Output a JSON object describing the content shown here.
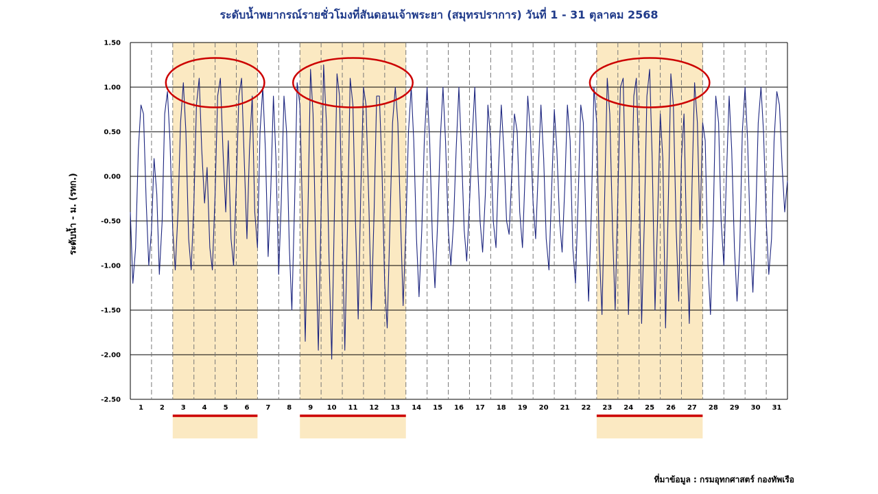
{
  "chart_data": {
    "type": "line",
    "title": "ระดับน้ำพยากรณ์รายชั่วโมงที่สันดอนเจ้าพระยา (สมุทรปราการ) วันที่ 1 - 31 ตุลาคม 2568",
    "ylabel": "ระดับน้ำ - ม. (รทก.)",
    "xlabel": "",
    "ylim": [
      -2.5,
      1.5
    ],
    "xlim": [
      0.5,
      31.5
    ],
    "yticks": [
      "1.50",
      "1.00",
      "0.50",
      "0.00",
      "-0.50",
      "-1.00",
      "-1.50",
      "-2.00",
      "-2.50"
    ],
    "categories": [
      "1",
      "2",
      "3",
      "4",
      "5",
      "6",
      "7",
      "8",
      "9",
      "10",
      "11",
      "12",
      "13",
      "14",
      "15",
      "16",
      "17",
      "18",
      "19",
      "20",
      "21",
      "22",
      "23",
      "24",
      "25",
      "26",
      "27",
      "28",
      "29",
      "30",
      "31"
    ],
    "grid": true,
    "colors": {
      "line": "#1a237e",
      "highlight": "#fbe9c2",
      "circle": "#cc0000",
      "underline": "#cc0000",
      "grid": "#000000"
    },
    "highlight_ranges": [
      [
        2.5,
        6.5
      ],
      [
        8.5,
        13.5
      ],
      [
        22.5,
        27.5
      ]
    ],
    "series": [
      {
        "points": [
          [
            0.5,
            -0.4
          ],
          [
            0.62,
            -1.2
          ],
          [
            0.75,
            -0.8
          ],
          [
            0.88,
            0.3
          ],
          [
            1.0,
            0.8
          ],
          [
            1.12,
            0.7
          ],
          [
            1.25,
            -0.3
          ],
          [
            1.37,
            -1.0
          ],
          [
            1.5,
            -0.6
          ],
          [
            1.62,
            0.2
          ],
          [
            1.75,
            -0.2
          ],
          [
            1.87,
            -1.1
          ],
          [
            2.0,
            -0.5
          ],
          [
            2.12,
            0.7
          ],
          [
            2.25,
            0.95
          ],
          [
            2.37,
            0.4
          ],
          [
            2.5,
            -0.6
          ],
          [
            2.62,
            -1.05
          ],
          [
            2.75,
            -0.4
          ],
          [
            2.87,
            0.6
          ],
          [
            3.0,
            1.05
          ],
          [
            3.12,
            0.5
          ],
          [
            3.25,
            -0.7
          ],
          [
            3.37,
            -1.05
          ],
          [
            3.5,
            -0.3
          ],
          [
            3.62,
            0.8
          ],
          [
            3.75,
            1.1
          ],
          [
            3.87,
            0.3
          ],
          [
            4.0,
            -0.3
          ],
          [
            4.12,
            0.1
          ],
          [
            4.25,
            -0.8
          ],
          [
            4.37,
            -1.05
          ],
          [
            4.5,
            -0.2
          ],
          [
            4.62,
            0.9
          ],
          [
            4.75,
            1.1
          ],
          [
            4.87,
            0.3
          ],
          [
            5.0,
            -0.4
          ],
          [
            5.12,
            0.4
          ],
          [
            5.25,
            -0.7
          ],
          [
            5.37,
            -1.0
          ],
          [
            5.5,
            -0.1
          ],
          [
            5.62,
            0.9
          ],
          [
            5.75,
            1.1
          ],
          [
            5.87,
            0.2
          ],
          [
            6.0,
            -0.7
          ],
          [
            6.12,
            0.3
          ],
          [
            6.25,
            0.9
          ],
          [
            6.37,
            -0.4
          ],
          [
            6.5,
            -0.8
          ],
          [
            6.62,
            0.5
          ],
          [
            6.75,
            1.0
          ],
          [
            6.87,
            0.3
          ],
          [
            7.0,
            -0.9
          ],
          [
            7.12,
            -0.2
          ],
          [
            7.25,
            0.9
          ],
          [
            7.37,
            0.2
          ],
          [
            7.5,
            -1.1
          ],
          [
            7.62,
            -0.3
          ],
          [
            7.75,
            0.9
          ],
          [
            7.87,
            0.5
          ],
          [
            8.0,
            -0.8
          ],
          [
            8.12,
            -1.5
          ],
          [
            8.25,
            -0.3
          ],
          [
            8.37,
            1.05
          ],
          [
            8.5,
            0.8
          ],
          [
            8.62,
            -0.4
          ],
          [
            8.75,
            -1.85
          ],
          [
            8.87,
            -0.5
          ],
          [
            9.0,
            1.2
          ],
          [
            9.12,
            0.7
          ],
          [
            9.25,
            -0.8
          ],
          [
            9.37,
            -1.95
          ],
          [
            9.5,
            -0.4
          ],
          [
            9.62,
            1.25
          ],
          [
            9.75,
            0.6
          ],
          [
            9.87,
            -0.9
          ],
          [
            10.0,
            -2.05
          ],
          [
            10.12,
            -0.5
          ],
          [
            10.25,
            1.15
          ],
          [
            10.37,
            0.9
          ],
          [
            10.5,
            -0.6
          ],
          [
            10.62,
            -1.95
          ],
          [
            10.75,
            -0.5
          ],
          [
            10.87,
            1.1
          ],
          [
            11.0,
            0.8
          ],
          [
            11.12,
            -0.5
          ],
          [
            11.25,
            -1.6
          ],
          [
            11.37,
            -0.2
          ],
          [
            11.5,
            1.0
          ],
          [
            11.62,
            0.8
          ],
          [
            11.75,
            -0.3
          ],
          [
            11.87,
            -1.5
          ],
          [
            12.0,
            -0.4
          ],
          [
            12.12,
            0.9
          ],
          [
            12.25,
            0.9
          ],
          [
            12.37,
            0.1
          ],
          [
            12.5,
            -1.2
          ],
          [
            12.62,
            -1.7
          ],
          [
            12.75,
            -0.5
          ],
          [
            12.87,
            0.6
          ],
          [
            13.0,
            1.0
          ],
          [
            13.12,
            0.6
          ],
          [
            13.25,
            -0.5
          ],
          [
            13.37,
            -1.45
          ],
          [
            13.5,
            -0.6
          ],
          [
            13.62,
            0.5
          ],
          [
            13.75,
            1.0
          ],
          [
            13.87,
            0.4
          ],
          [
            14.0,
            -0.7
          ],
          [
            14.12,
            -1.35
          ],
          [
            14.25,
            -0.6
          ],
          [
            14.37,
            0.4
          ],
          [
            14.5,
            1.0
          ],
          [
            14.62,
            0.4
          ],
          [
            14.75,
            -0.7
          ],
          [
            14.87,
            -1.25
          ],
          [
            15.0,
            -0.5
          ],
          [
            15.12,
            0.4
          ],
          [
            15.25,
            1.0
          ],
          [
            15.37,
            0.4
          ],
          [
            15.5,
            -0.6
          ],
          [
            15.62,
            -1.0
          ],
          [
            15.75,
            -0.5
          ],
          [
            15.87,
            0.3
          ],
          [
            16.0,
            1.0
          ],
          [
            16.12,
            0.3
          ],
          [
            16.25,
            -0.6
          ],
          [
            16.37,
            -0.95
          ],
          [
            16.5,
            -0.3
          ],
          [
            16.62,
            0.4
          ],
          [
            16.75,
            1.0
          ],
          [
            16.87,
            0.2
          ],
          [
            17.0,
            -0.5
          ],
          [
            17.12,
            -0.85
          ],
          [
            17.25,
            -0.2
          ],
          [
            17.37,
            0.8
          ],
          [
            17.5,
            0.4
          ],
          [
            17.62,
            -0.5
          ],
          [
            17.75,
            -0.8
          ],
          [
            17.87,
            0.1
          ],
          [
            18.0,
            0.8
          ],
          [
            18.12,
            0.3
          ],
          [
            18.25,
            -0.5
          ],
          [
            18.37,
            -0.65
          ],
          [
            18.5,
            0.05
          ],
          [
            18.62,
            0.7
          ],
          [
            18.75,
            0.5
          ],
          [
            18.87,
            -0.4
          ],
          [
            19.0,
            -0.8
          ],
          [
            19.12,
            0.0
          ],
          [
            19.25,
            0.9
          ],
          [
            19.37,
            0.5
          ],
          [
            19.5,
            -0.3
          ],
          [
            19.62,
            -0.7
          ],
          [
            19.75,
            0.1
          ],
          [
            19.87,
            0.8
          ],
          [
            20.0,
            0.2
          ],
          [
            20.12,
            -0.7
          ],
          [
            20.25,
            -1.05
          ],
          [
            20.37,
            -0.2
          ],
          [
            20.5,
            0.75
          ],
          [
            20.62,
            0.3
          ],
          [
            20.75,
            -0.5
          ],
          [
            20.87,
            -0.85
          ],
          [
            21.0,
            -0.1
          ],
          [
            21.12,
            0.8
          ],
          [
            21.25,
            0.4
          ],
          [
            21.37,
            -0.8
          ],
          [
            21.5,
            -1.2
          ],
          [
            21.62,
            -0.3
          ],
          [
            21.75,
            0.8
          ],
          [
            21.87,
            0.6
          ],
          [
            22.0,
            -0.6
          ],
          [
            22.12,
            -1.4
          ],
          [
            22.25,
            -0.4
          ],
          [
            22.37,
            1.0
          ],
          [
            22.5,
            0.6
          ],
          [
            22.62,
            -0.8
          ],
          [
            22.75,
            -1.55
          ],
          [
            22.87,
            -0.3
          ],
          [
            23.0,
            1.1
          ],
          [
            23.12,
            0.7
          ],
          [
            23.25,
            -0.6
          ],
          [
            23.37,
            -1.5
          ],
          [
            23.5,
            -0.2
          ],
          [
            23.62,
            1.0
          ],
          [
            23.75,
            1.1
          ],
          [
            23.87,
            -0.2
          ],
          [
            24.0,
            -1.55
          ],
          [
            24.12,
            -0.6
          ],
          [
            24.25,
            0.9
          ],
          [
            24.37,
            1.1
          ],
          [
            24.5,
            0.1
          ],
          [
            24.62,
            -1.65
          ],
          [
            24.75,
            -0.5
          ],
          [
            24.87,
            0.9
          ],
          [
            25.0,
            1.2
          ],
          [
            25.12,
            0.2
          ],
          [
            25.25,
            -1.5
          ],
          [
            25.37,
            -0.5
          ],
          [
            25.5,
            0.7
          ],
          [
            25.62,
            0.2
          ],
          [
            25.75,
            -1.7
          ],
          [
            25.87,
            -0.4
          ],
          [
            26.0,
            1.15
          ],
          [
            26.12,
            0.8
          ],
          [
            26.25,
            -0.6
          ],
          [
            26.37,
            -1.4
          ],
          [
            26.5,
            0.2
          ],
          [
            26.62,
            0.7
          ],
          [
            26.75,
            -0.8
          ],
          [
            26.87,
            -1.65
          ],
          [
            27.0,
            -0.1
          ],
          [
            27.12,
            1.05
          ],
          [
            27.25,
            0.6
          ],
          [
            27.37,
            -0.6
          ],
          [
            27.5,
            0.6
          ],
          [
            27.62,
            0.4
          ],
          [
            27.75,
            -1.0
          ],
          [
            27.87,
            -1.55
          ],
          [
            28.0,
            -0.5
          ],
          [
            28.12,
            0.9
          ],
          [
            28.25,
            0.6
          ],
          [
            28.37,
            -0.5
          ],
          [
            28.5,
            -1.0
          ],
          [
            28.62,
            0.0
          ],
          [
            28.75,
            0.9
          ],
          [
            28.87,
            0.3
          ],
          [
            29.0,
            -0.8
          ],
          [
            29.12,
            -1.4
          ],
          [
            29.25,
            -0.8
          ],
          [
            29.37,
            0.5
          ],
          [
            29.5,
            1.0
          ],
          [
            29.62,
            0.4
          ],
          [
            29.75,
            -0.7
          ],
          [
            29.87,
            -1.3
          ],
          [
            30.0,
            -0.5
          ],
          [
            30.12,
            0.6
          ],
          [
            30.25,
            1.0
          ],
          [
            30.37,
            0.5
          ],
          [
            30.5,
            -0.5
          ],
          [
            30.62,
            -1.1
          ],
          [
            30.75,
            -0.7
          ],
          [
            30.87,
            0.4
          ],
          [
            31.0,
            0.95
          ],
          [
            31.12,
            0.8
          ],
          [
            31.25,
            0.1
          ],
          [
            31.37,
            -0.4
          ],
          [
            31.5,
            -0.05
          ]
        ]
      }
    ]
  },
  "source_label": "ที่มาข้อมูล : กรมอุทกศาสตร์ กองทัพเรือ"
}
